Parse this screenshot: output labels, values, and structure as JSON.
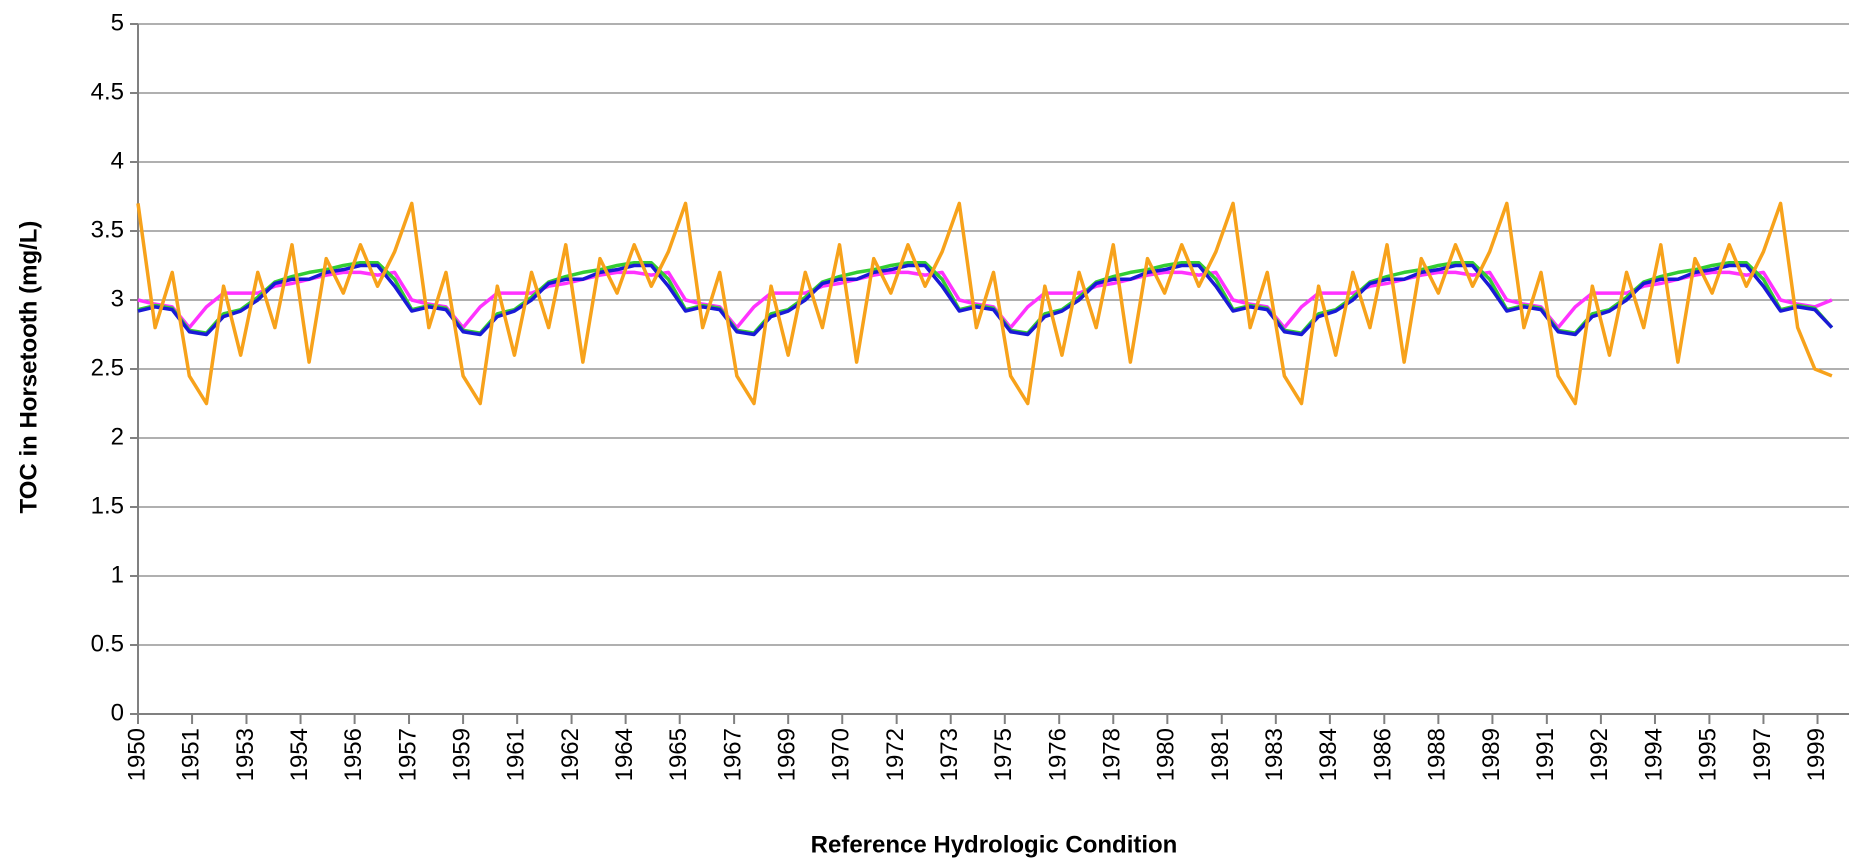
{
  "chart_data": {
    "type": "line",
    "x_label": "Reference Hydrologic Condition",
    "y_label": "TOC in Horsetooth (mg/L)",
    "xlim": [
      1950,
      2000
    ],
    "ylim": [
      0,
      5
    ],
    "yticks": [
      0,
      0.5,
      1,
      1.5,
      2,
      2.5,
      3,
      3.5,
      4,
      4.5,
      5
    ],
    "grid": true,
    "xticks": [
      1950,
      {
        "value": 1951.58,
        "label": "1951"
      },
      {
        "value": 1953.17,
        "label": "1953"
      },
      {
        "value": 1954.75,
        "label": "1954"
      },
      {
        "value": 1956.33,
        "label": "1956"
      },
      {
        "value": 1957.92,
        "label": "1957"
      },
      {
        "value": 1959.5,
        "label": "1959"
      },
      {
        "value": 1961.08,
        "label": "1961"
      },
      {
        "value": 1962.67,
        "label": "1962"
      },
      {
        "value": 1964.25,
        "label": "1964"
      },
      {
        "value": 1965.83,
        "label": "1965"
      },
      {
        "value": 1967.42,
        "label": "1967"
      },
      1969,
      {
        "value": 1970.58,
        "label": "1970"
      },
      {
        "value": 1972.17,
        "label": "1972"
      },
      {
        "value": 1973.75,
        "label": "1973"
      },
      {
        "value": 1975.33,
        "label": "1975"
      },
      {
        "value": 1976.92,
        "label": "1976"
      },
      {
        "value": 1978.5,
        "label": "1978"
      },
      {
        "value": 1980.08,
        "label": "1980"
      },
      {
        "value": 1981.67,
        "label": "1981"
      },
      {
        "value": 1983.25,
        "label": "1983"
      },
      {
        "value": 1984.83,
        "label": "1984"
      },
      {
        "value": 1986.42,
        "label": "1986"
      },
      1988,
      {
        "value": 1989.58,
        "label": "1989"
      },
      {
        "value": 1991.17,
        "label": "1991"
      },
      {
        "value": 1992.75,
        "label": "1992"
      },
      {
        "value": 1994.33,
        "label": "1994"
      },
      {
        "value": 1995.92,
        "label": "1995"
      },
      {
        "value": 1997.5,
        "label": "1997"
      },
      {
        "value": 1999.08,
        "label": "1999"
      }
    ],
    "x": [
      1950,
      1950.5,
      1951,
      1951.5,
      1952,
      1952.5,
      1953,
      1953.5,
      1954,
      1954.5,
      1955,
      1955.5,
      1956,
      1956.5,
      1957,
      1957.5,
      1958,
      1958.5,
      1959,
      1959.5,
      1960,
      1960.5,
      1961,
      1961.5,
      1962,
      1962.5,
      1963,
      1963.5,
      1964,
      1964.5,
      1965,
      1965.5,
      1966,
      1966.5,
      1967,
      1967.5,
      1968,
      1968.5,
      1969,
      1969.5,
      1970,
      1970.5,
      1971,
      1971.5,
      1972,
      1972.5,
      1973,
      1973.5,
      1974,
      1974.5,
      1975,
      1975.5,
      1976,
      1976.5,
      1977,
      1977.5,
      1978,
      1978.5,
      1979,
      1979.5,
      1980,
      1980.5,
      1981,
      1981.5,
      1982,
      1982.5,
      1983,
      1983.5,
      1984,
      1984.5,
      1985,
      1985.5,
      1986,
      1986.5,
      1987,
      1987.5,
      1988,
      1988.5,
      1989,
      1989.5,
      1990,
      1990.5,
      1991,
      1991.5,
      1992,
      1992.5,
      1993,
      1993.5,
      1994,
      1994.5,
      1995,
      1995.5,
      1996,
      1996.5,
      1997,
      1997.5,
      1998,
      1998.5,
      1999,
      1999.5
    ],
    "series": [
      {
        "color": "#ff33ff",
        "values": [
          3.0,
          2.97,
          2.95,
          2.8,
          2.95,
          3.05,
          3.05,
          3.05,
          3.1,
          3.12,
          3.15,
          3.18,
          3.2,
          3.2,
          3.18,
          3.2,
          3.0,
          2.97,
          2.95,
          2.8,
          2.95,
          3.05,
          3.05,
          3.05,
          3.1,
          3.12,
          3.15,
          3.18,
          3.2,
          3.2,
          3.18,
          3.2,
          3.0,
          2.97,
          2.95,
          2.8,
          2.95,
          3.05,
          3.05,
          3.05,
          3.1,
          3.12,
          3.15,
          3.18,
          3.2,
          3.2,
          3.18,
          3.2,
          3.0,
          2.97,
          2.95,
          2.8,
          2.95,
          3.05,
          3.05,
          3.05,
          3.1,
          3.12,
          3.15,
          3.18,
          3.2,
          3.2,
          3.18,
          3.2,
          3.0,
          2.97,
          2.95,
          2.8,
          2.95,
          3.05,
          3.05,
          3.05,
          3.1,
          3.12,
          3.15,
          3.18,
          3.2,
          3.2,
          3.18,
          3.2,
          3.0,
          2.97,
          2.95,
          2.8,
          2.95,
          3.05,
          3.05,
          3.05,
          3.1,
          3.12,
          3.15,
          3.18,
          3.2,
          3.2,
          3.18,
          3.2,
          3.0,
          2.97,
          2.95,
          3.0
        ]
      },
      {
        "color": "#33cc33",
        "values": [
          2.93,
          2.96,
          2.94,
          2.78,
          2.76,
          2.9,
          2.93,
          3.02,
          3.13,
          3.17,
          3.2,
          3.22,
          3.25,
          3.27,
          3.27,
          3.15,
          2.93,
          2.96,
          2.94,
          2.78,
          2.76,
          2.9,
          2.93,
          3.02,
          3.13,
          3.17,
          3.2,
          3.22,
          3.25,
          3.27,
          3.27,
          3.15,
          2.93,
          2.96,
          2.94,
          2.78,
          2.76,
          2.9,
          2.93,
          3.02,
          3.13,
          3.17,
          3.2,
          3.22,
          3.25,
          3.27,
          3.27,
          3.15,
          2.93,
          2.96,
          2.94,
          2.78,
          2.76,
          2.9,
          2.93,
          3.02,
          3.13,
          3.17,
          3.2,
          3.22,
          3.25,
          3.27,
          3.27,
          3.15,
          2.93,
          2.96,
          2.94,
          2.78,
          2.76,
          2.9,
          2.93,
          3.02,
          3.13,
          3.17,
          3.2,
          3.22,
          3.25,
          3.27,
          3.27,
          3.15,
          2.93,
          2.96,
          2.94,
          2.78,
          2.76,
          2.9,
          2.93,
          3.02,
          3.13,
          3.17,
          3.2,
          3.22,
          3.25,
          3.27,
          3.27,
          3.15,
          2.93,
          2.96,
          2.94,
          2.8
        ]
      },
      {
        "color": "#1a1ad6",
        "values": [
          2.92,
          2.95,
          2.93,
          2.77,
          2.75,
          2.88,
          2.92,
          3.0,
          3.12,
          3.15,
          3.15,
          3.2,
          3.22,
          3.25,
          3.25,
          3.1,
          2.92,
          2.95,
          2.93,
          2.77,
          2.75,
          2.88,
          2.92,
          3.0,
          3.12,
          3.15,
          3.15,
          3.2,
          3.22,
          3.25,
          3.25,
          3.1,
          2.92,
          2.95,
          2.93,
          2.77,
          2.75,
          2.88,
          2.92,
          3.0,
          3.12,
          3.15,
          3.15,
          3.2,
          3.22,
          3.25,
          3.25,
          3.1,
          2.92,
          2.95,
          2.93,
          2.77,
          2.75,
          2.88,
          2.92,
          3.0,
          3.12,
          3.15,
          3.15,
          3.2,
          3.22,
          3.25,
          3.25,
          3.1,
          2.92,
          2.95,
          2.93,
          2.77,
          2.75,
          2.88,
          2.92,
          3.0,
          3.12,
          3.15,
          3.15,
          3.2,
          3.22,
          3.25,
          3.25,
          3.1,
          2.92,
          2.95,
          2.93,
          2.77,
          2.75,
          2.88,
          2.92,
          3.0,
          3.12,
          3.15,
          3.15,
          3.2,
          3.22,
          3.25,
          3.25,
          3.1,
          2.92,
          2.95,
          2.93,
          2.8
        ]
      },
      {
        "color": "#f7a21b",
        "values": [
          3.7,
          2.8,
          3.2,
          2.45,
          2.25,
          3.1,
          2.6,
          3.2,
          2.8,
          3.4,
          2.55,
          3.3,
          3.05,
          3.4,
          3.1,
          3.35,
          3.7,
          2.8,
          3.2,
          2.45,
          2.25,
          3.1,
          2.6,
          3.2,
          2.8,
          3.4,
          2.55,
          3.3,
          3.05,
          3.4,
          3.1,
          3.35,
          3.7,
          2.8,
          3.2,
          2.45,
          2.25,
          3.1,
          2.6,
          3.2,
          2.8,
          3.4,
          2.55,
          3.3,
          3.05,
          3.4,
          3.1,
          3.35,
          3.7,
          2.8,
          3.2,
          2.45,
          2.25,
          3.1,
          2.6,
          3.2,
          2.8,
          3.4,
          2.55,
          3.3,
          3.05,
          3.4,
          3.1,
          3.35,
          3.7,
          2.8,
          3.2,
          2.45,
          2.25,
          3.1,
          2.6,
          3.2,
          2.8,
          3.4,
          2.55,
          3.3,
          3.05,
          3.4,
          3.1,
          3.35,
          3.7,
          2.8,
          3.2,
          2.45,
          2.25,
          3.1,
          2.6,
          3.2,
          2.8,
          3.4,
          2.55,
          3.3,
          3.05,
          3.4,
          3.1,
          3.35,
          3.7,
          2.8,
          2.5,
          2.45
        ]
      }
    ]
  }
}
